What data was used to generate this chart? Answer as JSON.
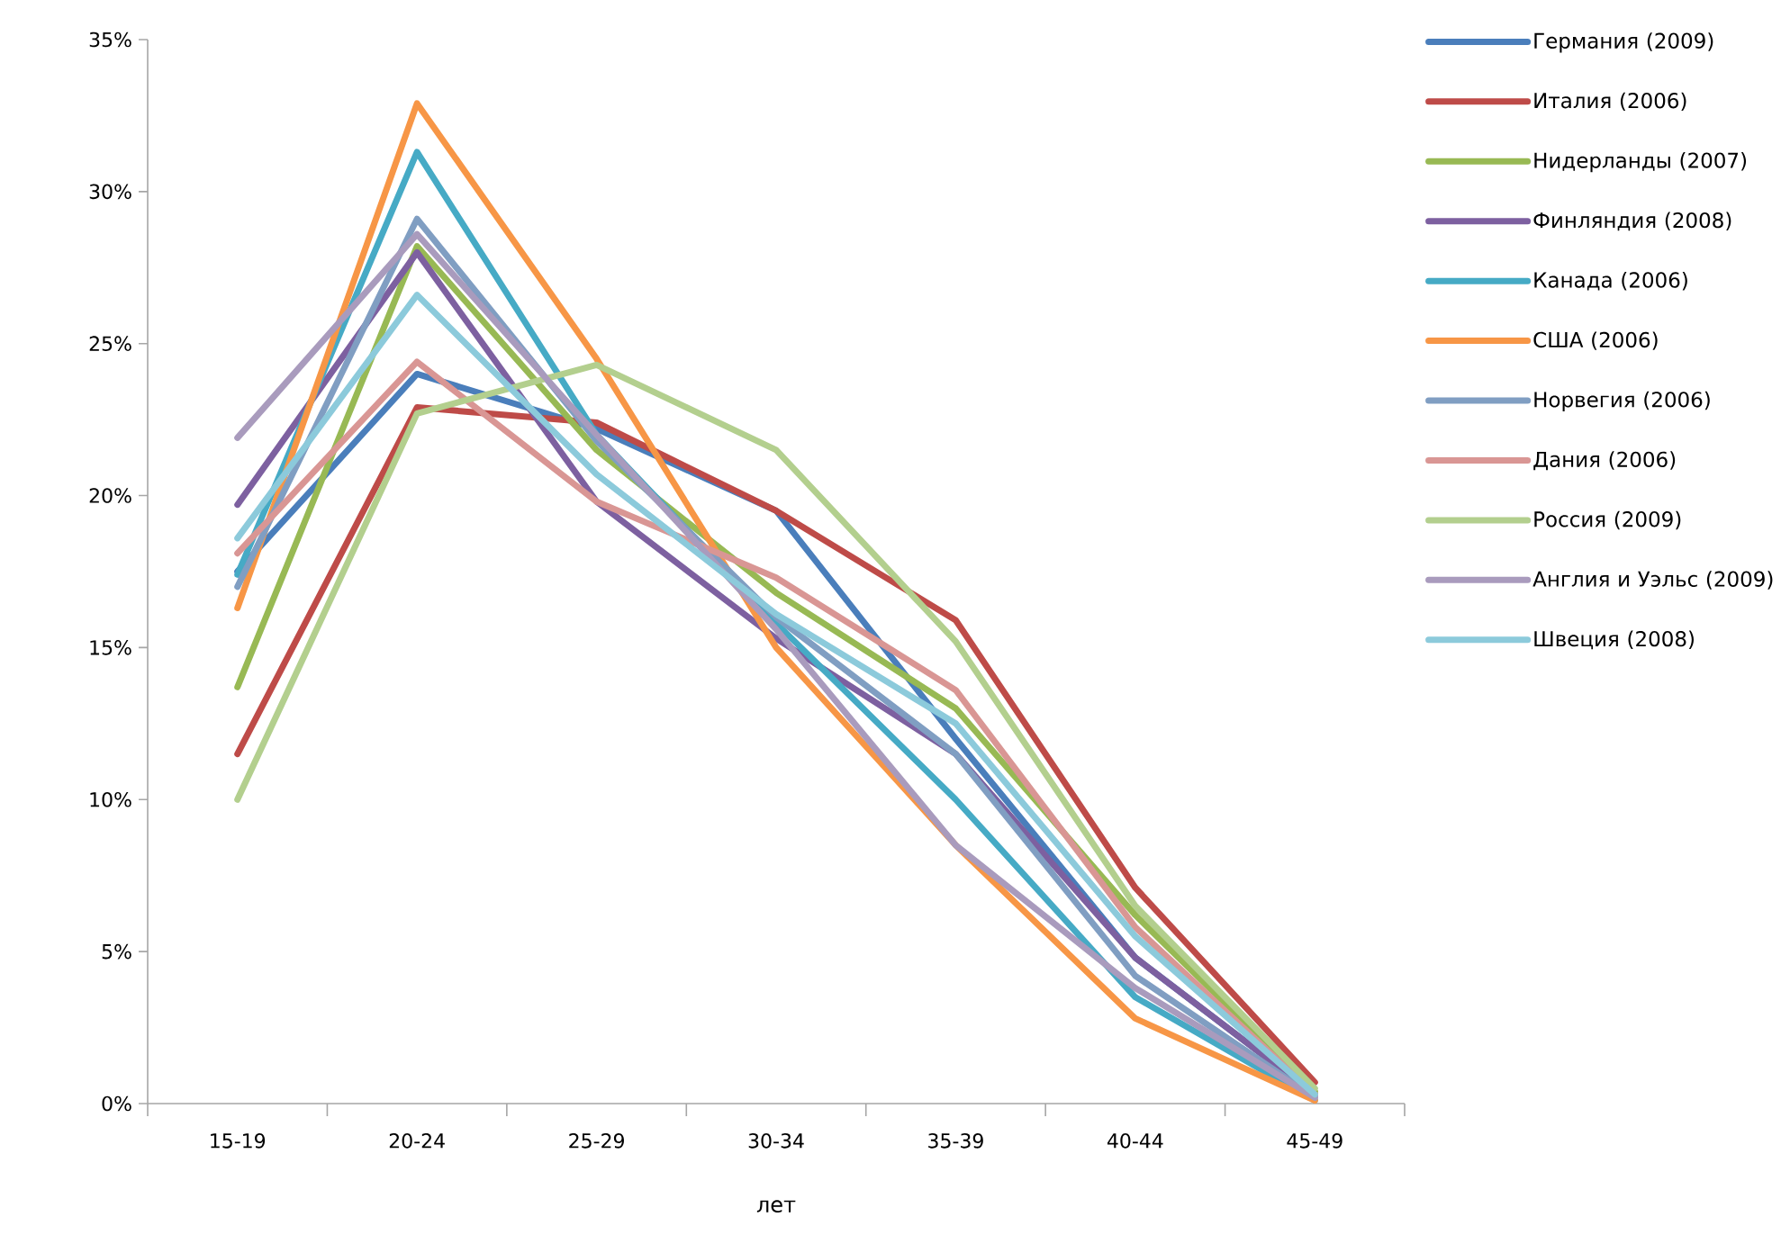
{
  "chart_data": {
    "type": "line",
    "xlabel": "лет",
    "categories": [
      "15-19",
      "20-24",
      "25-29",
      "30-34",
      "35-39",
      "40-44",
      "45-49"
    ],
    "ylim": [
      0,
      35
    ],
    "yticks": [
      {
        "value": 0,
        "label": "0%"
      },
      {
        "value": 5,
        "label": "5%"
      },
      {
        "value": 10,
        "label": "10%"
      },
      {
        "value": 15,
        "label": "15%"
      },
      {
        "value": 20,
        "label": "20%"
      },
      {
        "value": 25,
        "label": "25%"
      },
      {
        "value": 30,
        "label": "30%"
      },
      {
        "value": 35,
        "label": "35%"
      }
    ],
    "grid": false,
    "legend": "right",
    "marker": "none",
    "line_style": "solid",
    "series": [
      {
        "name": "Германия (2009)",
        "color": "#4a7ebb",
        "values": [
          17.5,
          24.0,
          22.2,
          19.5,
          12.0,
          4.8,
          0.3
        ]
      },
      {
        "name": "Италия (2006)",
        "color": "#be4b48",
        "values": [
          11.5,
          22.9,
          22.4,
          19.5,
          15.9,
          7.1,
          0.7
        ]
      },
      {
        "name": "Нидерланды (2007)",
        "color": "#98b954",
        "values": [
          13.7,
          28.2,
          21.5,
          16.8,
          13.0,
          6.2,
          0.4
        ]
      },
      {
        "name": "Финляндия (2008)",
        "color": "#7d60a0",
        "values": [
          19.7,
          28.0,
          19.8,
          15.3,
          11.5,
          4.8,
          0.3
        ]
      },
      {
        "name": "Канада (2006)",
        "color": "#46aac5",
        "values": [
          17.4,
          31.3,
          22.0,
          15.8,
          10.0,
          3.5,
          0.1
        ]
      },
      {
        "name": "США (2006)",
        "color": "#f79646",
        "values": [
          16.3,
          32.9,
          24.5,
          15.0,
          8.5,
          2.8,
          0.1
        ]
      },
      {
        "name": "Норвегия (2006)",
        "color": "#809ec2",
        "values": [
          17.0,
          29.1,
          21.8,
          16.0,
          11.5,
          4.2,
          0.2
        ]
      },
      {
        "name": "Дания (2006)",
        "color": "#d99694",
        "values": [
          18.1,
          24.4,
          19.8,
          17.3,
          13.6,
          5.8,
          0.3
        ]
      },
      {
        "name": "Россия (2009)",
        "color": "#b3cf8e",
        "values": [
          10.0,
          22.7,
          24.3,
          21.5,
          15.2,
          6.5,
          0.5
        ]
      },
      {
        "name": "Англия и Уэльс (2009)",
        "color": "#a99bbd",
        "values": [
          21.9,
          28.6,
          22.0,
          15.6,
          8.5,
          3.8,
          0.2
        ]
      },
      {
        "name": "Швеция (2008)",
        "color": "#8ccadb",
        "values": [
          18.6,
          26.6,
          20.7,
          16.1,
          12.5,
          5.5,
          0.3
        ]
      }
    ]
  }
}
